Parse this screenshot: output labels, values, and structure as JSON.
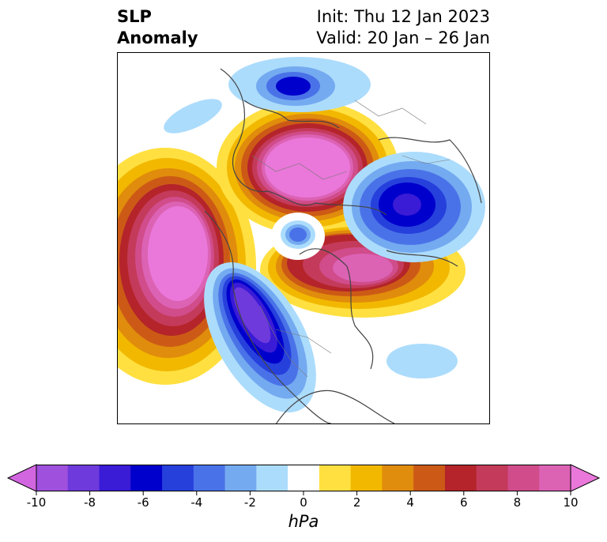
{
  "title": {
    "left_line1": "SLP",
    "left_line2": "Anomaly",
    "right_line1": "Init: Thu 12 Jan 2023",
    "right_line2": "Valid: 20 Jan – 26 Jan"
  },
  "colorbar": {
    "units": "hPa",
    "ticks": [
      "-10",
      "-8",
      "-6",
      "-4",
      "-2",
      "0",
      "2",
      "4",
      "6",
      "8",
      "10"
    ],
    "levels": [
      -10,
      -9,
      -8,
      -7,
      -6,
      -5,
      -4,
      -3,
      -2,
      -1,
      1,
      2,
      3,
      4,
      5,
      6,
      7,
      8,
      9,
      10
    ],
    "colors": [
      "#d266e0",
      "#9f50dd",
      "#6e3adc",
      "#3a1bd6",
      "#0000cc",
      "#2640dc",
      "#4a72e8",
      "#74aaf0",
      "#acdcfc",
      "#ffffff",
      "#ffe040",
      "#f2b800",
      "#e08c0c",
      "#cc5a16",
      "#b4242a",
      "#c43a5a",
      "#d04c8a",
      "#dc62b4",
      "#ea78da"
    ],
    "extend": "both"
  },
  "map": {
    "projection": "north-polar-stereographic",
    "field": "sea level pressure anomaly",
    "anomaly_centers": [
      {
        "name": "negative-west-coast-na",
        "value": -8
      },
      {
        "name": "negative-siberia",
        "value": -7
      },
      {
        "name": "negative-north-atlantic",
        "value": -5
      },
      {
        "name": "negative-arctic",
        "value": -4
      },
      {
        "name": "positive-north-pacific",
        "value": 10
      },
      {
        "name": "positive-europe",
        "value": 10
      },
      {
        "name": "positive-greenland-atlantic",
        "value": 9
      }
    ]
  }
}
